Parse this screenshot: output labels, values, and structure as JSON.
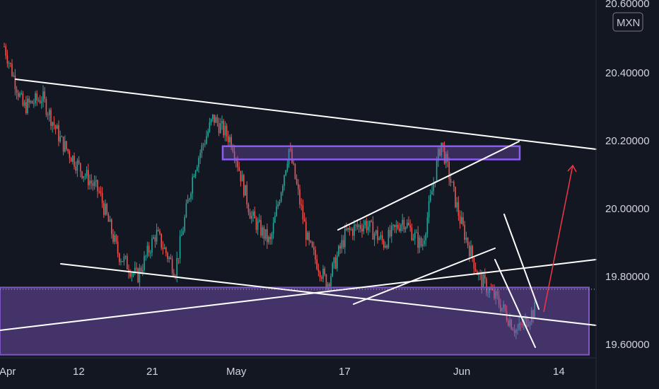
{
  "chart_data": {
    "type": "candlestick",
    "currency_label": "MXN",
    "y_ticks": [
      "20.60000",
      "20.40000",
      "20.20000",
      "20.00000",
      "19.80000",
      "19.60000"
    ],
    "x_ticks": [
      "Apr",
      "12",
      "21",
      "May",
      "17",
      "Jun",
      "14"
    ],
    "ylim": [
      19.6,
      20.6
    ],
    "grid": false,
    "colors": {
      "background": "#131722",
      "up": "#26a69a",
      "down": "#ef5350",
      "zone": "#7e57c2",
      "trendline": "#ffffff",
      "projection": "#f23645",
      "axis_text": "#d1d4dc"
    },
    "series": [
      {
        "x": "Apr",
        "y": 20.48
      },
      {
        "x": "Apr",
        "y": 20.3
      },
      {
        "x": "Apr",
        "y": 20.33
      },
      {
        "x": "Apr",
        "y": 20.2
      },
      {
        "x": "12",
        "y": 20.12
      },
      {
        "x": "12",
        "y": 20.05
      },
      {
        "x": "21",
        "y": 19.87
      },
      {
        "x": "21",
        "y": 19.8
      },
      {
        "x": "21",
        "y": 19.93
      },
      {
        "x": "21",
        "y": 19.82
      },
      {
        "x": "May",
        "y": 20.12
      },
      {
        "x": "May",
        "y": 20.27
      },
      {
        "x": "May",
        "y": 20.2
      },
      {
        "x": "May",
        "y": 19.98
      },
      {
        "x": "May",
        "y": 19.9
      },
      {
        "x": "May",
        "y": 20.18
      },
      {
        "x": "17",
        "y": 19.9
      },
      {
        "x": "17",
        "y": 19.78
      },
      {
        "x": "17",
        "y": 19.93
      },
      {
        "x": "17",
        "y": 19.96
      },
      {
        "x": "17",
        "y": 19.9
      },
      {
        "x": "Jun",
        "y": 19.97
      },
      {
        "x": "Jun",
        "y": 19.89
      },
      {
        "x": "Jun",
        "y": 20.2
      },
      {
        "x": "Jun",
        "y": 19.97
      },
      {
        "x": "Jun",
        "y": 19.8
      },
      {
        "x": "Jun",
        "y": 19.73
      },
      {
        "x": "14",
        "y": 19.64
      },
      {
        "x": "14",
        "y": 19.71
      }
    ],
    "annotations": [
      {
        "kind": "support-zone",
        "from": 19.77,
        "to": 19.58
      },
      {
        "kind": "resistance-zone",
        "from": 20.186,
        "to": 20.147
      },
      {
        "kind": "trendline",
        "label": "upper descending line"
      },
      {
        "kind": "trendline",
        "label": "lower descending line"
      },
      {
        "kind": "trendline",
        "label": "rising line"
      },
      {
        "kind": "channel",
        "label": "rising channel"
      },
      {
        "kind": "wedge",
        "label": "falling wedge"
      },
      {
        "kind": "projection-arrow",
        "target": 20.15
      }
    ]
  }
}
